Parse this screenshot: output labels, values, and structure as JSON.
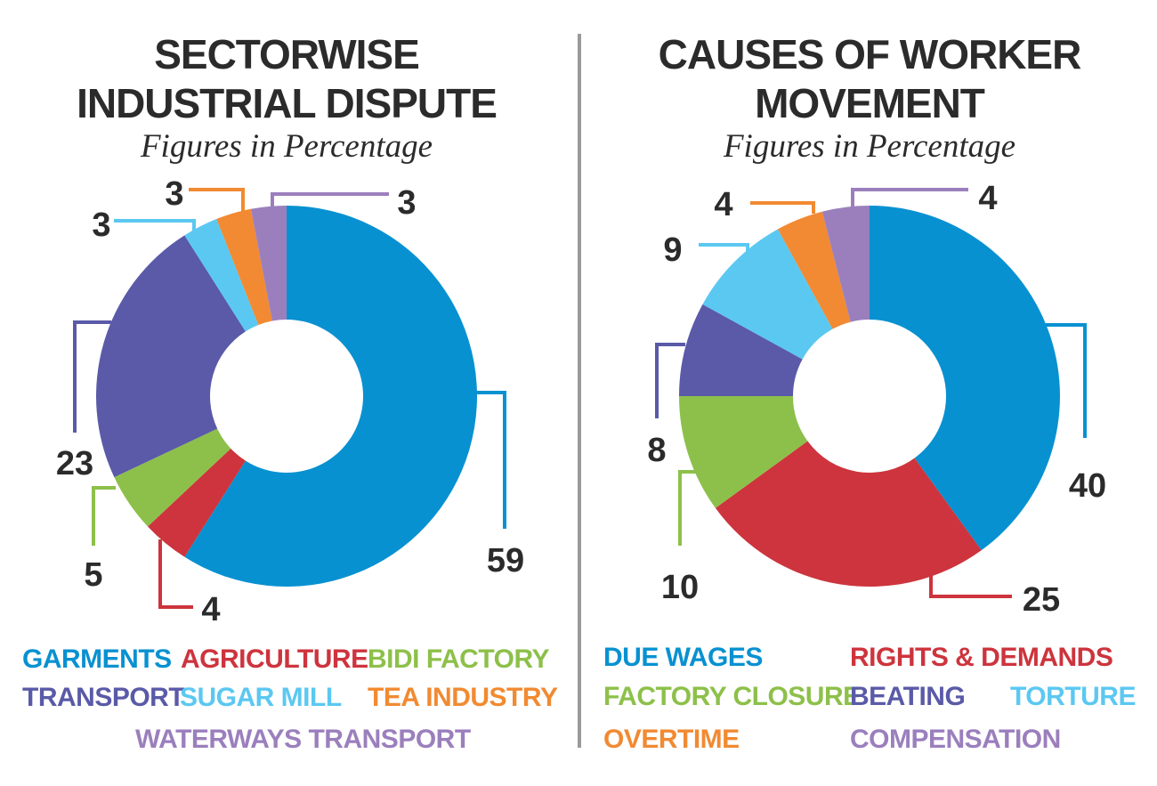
{
  "chart_data": [
    {
      "type": "pie",
      "title_lines": [
        "SECTORWISE",
        "INDUSTRIAL DISPUTE"
      ],
      "subtitle": "Figures in Percentage",
      "categories": [
        "GARMENTS",
        "AGRICULTURE",
        "BIDI FACTORY",
        "TRANSPORT",
        "SUGAR MILL",
        "TEA INDUSTRY",
        "WATERWAYS TRANSPORT"
      ],
      "values": [
        59,
        4,
        5,
        23,
        3,
        3,
        3
      ],
      "labels": [
        "59",
        "4",
        "5",
        "23",
        "3",
        "3",
        "3"
      ],
      "colors": [
        "#0891d1",
        "#cd343d",
        "#8dc04a",
        "#5a5aa8",
        "#5bc8f2",
        "#f18a32",
        "#9b7fbd"
      ],
      "legend_rows": [
        [
          "GARMENTS",
          "AGRICULTURE",
          "BIDI FACTORY"
        ],
        [
          "TRANSPORT",
          "SUGAR MILL",
          "TEA INDUSTRY"
        ],
        [
          "WATERWAYS TRANSPORT"
        ]
      ]
    },
    {
      "type": "pie",
      "title_lines": [
        "CAUSES OF WORKER",
        "MOVEMENT"
      ],
      "subtitle": "Figures in Percentage",
      "categories": [
        "DUE WAGES",
        "RIGHTS & DEMANDS",
        "FACTORY CLOSURE",
        "BEATING",
        "TORTURE",
        "OVERTIME",
        "COMPENSATION"
      ],
      "values": [
        40,
        25,
        10,
        8,
        9,
        4,
        4
      ],
      "labels": [
        "40",
        "25",
        "10",
        "8",
        "9",
        "4",
        "4"
      ],
      "colors": [
        "#0891d1",
        "#cd343d",
        "#8dc04a",
        "#5a5aa8",
        "#5bc8f2",
        "#f18a32",
        "#9b7fbd"
      ],
      "legend_rows": [
        [
          "DUE WAGES",
          "RIGHTS & DEMANDS"
        ],
        [
          "FACTORY CLOSURE",
          "BEATING",
          "TORTURE"
        ],
        [
          "OVERTIME",
          "COMPENSATION"
        ]
      ]
    }
  ]
}
